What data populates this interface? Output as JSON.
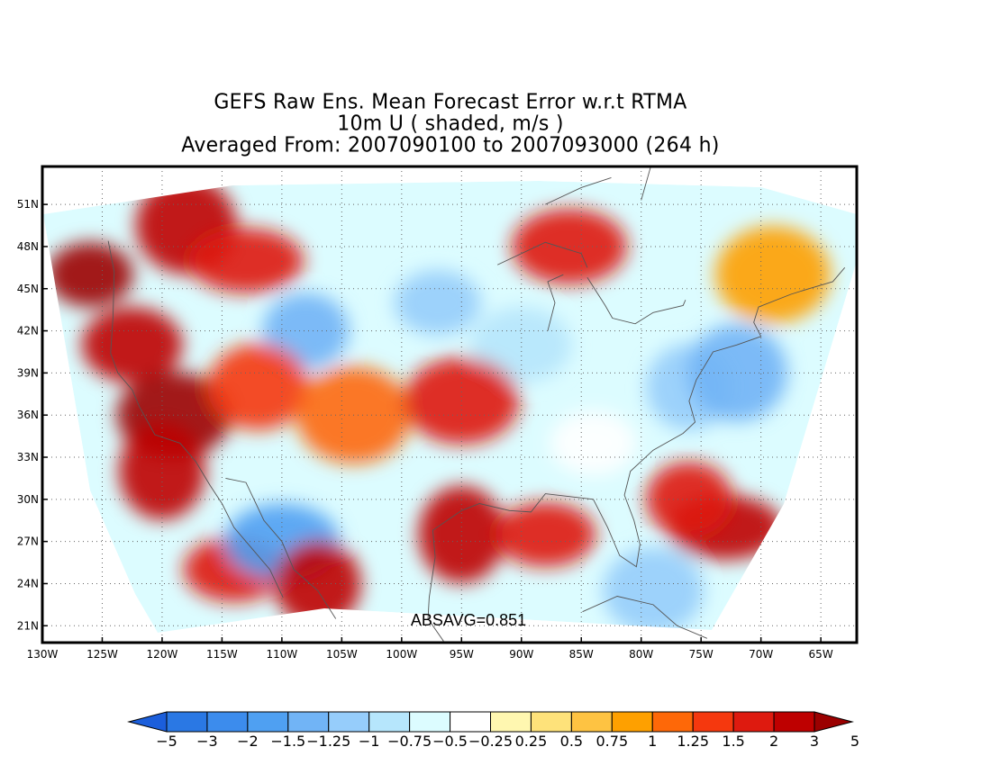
{
  "title": {
    "line1": "GEFS Raw Ens. Mean Forecast Error w.r.t RTMA",
    "line2": "10m U ( shaded, m/s )",
    "line3": "Averaged From: 2007090100 to 2007093000 (264 h)"
  },
  "map": {
    "lon_range": [
      -130,
      -62
    ],
    "lat_range": [
      19.8,
      53.7
    ],
    "lat_ticks": [
      {
        "value": 51,
        "label": "51N"
      },
      {
        "value": 48,
        "label": "48N"
      },
      {
        "value": 45,
        "label": "45N"
      },
      {
        "value": 42,
        "label": "42N"
      },
      {
        "value": 39,
        "label": "39N"
      },
      {
        "value": 36,
        "label": "36N"
      },
      {
        "value": 33,
        "label": "33N"
      },
      {
        "value": 30,
        "label": "30N"
      },
      {
        "value": 27,
        "label": "27N"
      },
      {
        "value": 24,
        "label": "24N"
      },
      {
        "value": 21,
        "label": "21N"
      }
    ],
    "lon_ticks": [
      {
        "value": -130,
        "label": "130W"
      },
      {
        "value": -125,
        "label": "125W"
      },
      {
        "value": -120,
        "label": "120W"
      },
      {
        "value": -115,
        "label": "115W"
      },
      {
        "value": -110,
        "label": "110W"
      },
      {
        "value": -105,
        "label": "105W"
      },
      {
        "value": -100,
        "label": "100W"
      },
      {
        "value": -95,
        "label": "95W"
      },
      {
        "value": -90,
        "label": "90W"
      },
      {
        "value": -85,
        "label": "85W"
      },
      {
        "value": -80,
        "label": "80W"
      },
      {
        "value": -75,
        "label": "75W"
      },
      {
        "value": -70,
        "label": "70W"
      },
      {
        "value": -65,
        "label": "65W"
      }
    ],
    "grid": true,
    "stat_text": "ABSAVG=0.851",
    "field_features": [
      {
        "lon": -126,
        "lat": 46,
        "value": 3
      },
      {
        "lon": -122.5,
        "lat": 41,
        "value": 2
      },
      {
        "lon": -119,
        "lat": 36,
        "value": 3
      },
      {
        "lon": -120,
        "lat": 32,
        "value": 2
      },
      {
        "lon": -114,
        "lat": 25,
        "value": 1.5
      },
      {
        "lon": -110,
        "lat": 27,
        "value": -2
      },
      {
        "lon": -107,
        "lat": 24,
        "value": 2
      },
      {
        "lon": -118,
        "lat": 49.5,
        "value": 2
      },
      {
        "lon": -113,
        "lat": 47,
        "value": 1.5
      },
      {
        "lon": -108,
        "lat": 42,
        "value": -1.5
      },
      {
        "lon": -112,
        "lat": 38,
        "value": 1.25
      },
      {
        "lon": -104,
        "lat": 36,
        "value": 1
      },
      {
        "lon": -97,
        "lat": 44,
        "value": -1.25
      },
      {
        "lon": -90,
        "lat": 41,
        "value": -1
      },
      {
        "lon": -95,
        "lat": 37,
        "value": 1.5
      },
      {
        "lon": -95,
        "lat": 27.5,
        "value": 2
      },
      {
        "lon": -88,
        "lat": 27.5,
        "value": 1.5
      },
      {
        "lon": -86,
        "lat": 48,
        "value": 1.5
      },
      {
        "lon": -76,
        "lat": 38,
        "value": -1.25
      },
      {
        "lon": -72,
        "lat": 39,
        "value": -1.5
      },
      {
        "lon": -73,
        "lat": 28,
        "value": 2
      },
      {
        "lon": -76,
        "lat": 30,
        "value": 1.5
      },
      {
        "lon": -79,
        "lat": 23.5,
        "value": -1.25
      },
      {
        "lon": -69,
        "lat": 46,
        "value": 0.75
      },
      {
        "lon": -84,
        "lat": 34,
        "value": -0.5
      }
    ],
    "coast_lines": [
      [
        [
          -124.5,
          48.4
        ],
        [
          -124,
          46.2
        ],
        [
          -124.1,
          43
        ],
        [
          -124.3,
          40.4
        ],
        [
          -123.7,
          39
        ],
        [
          -122.5,
          37.8
        ],
        [
          -121.9,
          36.6
        ],
        [
          -120.6,
          34.6
        ],
        [
          -118.5,
          34
        ],
        [
          -117.2,
          32.7
        ],
        [
          -116,
          31
        ],
        [
          -115,
          29.7
        ],
        [
          -114,
          28
        ],
        [
          -112.5,
          26.5
        ],
        [
          -111,
          25
        ],
        [
          -109.9,
          23
        ]
      ],
      [
        [
          -114.7,
          31.5
        ],
        [
          -113,
          31.2
        ],
        [
          -111.5,
          28.5
        ],
        [
          -110,
          27
        ],
        [
          -109,
          25
        ],
        [
          -107,
          23.5
        ],
        [
          -105.5,
          21.5
        ]
      ],
      [
        [
          -97.2,
          25.9
        ],
        [
          -97.4,
          27.8
        ],
        [
          -95,
          29.2
        ],
        [
          -93.5,
          29.7
        ],
        [
          -91,
          29.2
        ],
        [
          -89.2,
          29.1
        ],
        [
          -88,
          30.4
        ],
        [
          -86,
          30.2
        ],
        [
          -84,
          30
        ],
        [
          -82.8,
          28
        ],
        [
          -81.8,
          26
        ],
        [
          -80.4,
          25.2
        ],
        [
          -80.1,
          26.8
        ],
        [
          -80.6,
          28.5
        ],
        [
          -81.4,
          30.3
        ],
        [
          -80.9,
          32
        ],
        [
          -79,
          33.5
        ],
        [
          -76.5,
          34.7
        ],
        [
          -75.5,
          35.5
        ],
        [
          -76,
          37
        ],
        [
          -75.4,
          38.5
        ],
        [
          -74,
          40.5
        ],
        [
          -72,
          41
        ],
        [
          -70,
          41.6
        ],
        [
          -70.6,
          42.6
        ],
        [
          -70.2,
          43.7
        ],
        [
          -67.5,
          44.6
        ],
        [
          -66,
          45
        ],
        [
          -64,
          45.5
        ],
        [
          -63,
          46.5
        ]
      ],
      [
        [
          -97.2,
          25.9
        ],
        [
          -97.7,
          23
        ],
        [
          -97.8,
          21.5
        ],
        [
          -96.5,
          19.9
        ]
      ],
      [
        [
          -84.9,
          22
        ],
        [
          -82,
          23.1
        ],
        [
          -79,
          22.5
        ],
        [
          -77,
          21
        ],
        [
          -74.5,
          20.1
        ]
      ],
      [
        [
          -92,
          46.7
        ],
        [
          -88,
          48.3
        ],
        [
          -85,
          47.5
        ],
        [
          -84.5,
          46.5
        ]
      ],
      [
        [
          -87.8,
          42
        ],
        [
          -87.2,
          44
        ],
        [
          -87.8,
          45.5
        ],
        [
          -86.5,
          46
        ]
      ],
      [
        [
          -84.5,
          45.8
        ],
        [
          -83,
          43.8
        ],
        [
          -82.4,
          42.9
        ],
        [
          -80.5,
          42.5
        ],
        [
          -79,
          43.3
        ],
        [
          -76.5,
          43.8
        ],
        [
          -76.3,
          44.2
        ]
      ],
      [
        [
          -80,
          51.3
        ],
        [
          -79.2,
          53.7
        ]
      ],
      [
        [
          -88,
          51
        ],
        [
          -85,
          52.2
        ],
        [
          -82.5,
          52.9
        ]
      ]
    ]
  },
  "colorbar": {
    "levels": [
      "-5",
      "-3",
      "-2",
      "-1.5",
      "-1.25",
      "-1",
      "-0.75",
      "-0.5",
      "-0.25",
      "0.25",
      "0.5",
      "0.75",
      "1",
      "1.25",
      "1.5",
      "2",
      "3",
      "5"
    ],
    "colors": [
      "#1b5edb",
      "#2a78e4",
      "#3c8ced",
      "#4fa0f2",
      "#71b4f6",
      "#96cdfb",
      "#b6e6fc",
      "#dcfcff",
      "#ffffff",
      "#fff7b0",
      "#fee27a",
      "#fec342",
      "#fea000",
      "#fe6808",
      "#f5380e",
      "#de1a0f",
      "#be0000",
      "#9b0000"
    ]
  }
}
